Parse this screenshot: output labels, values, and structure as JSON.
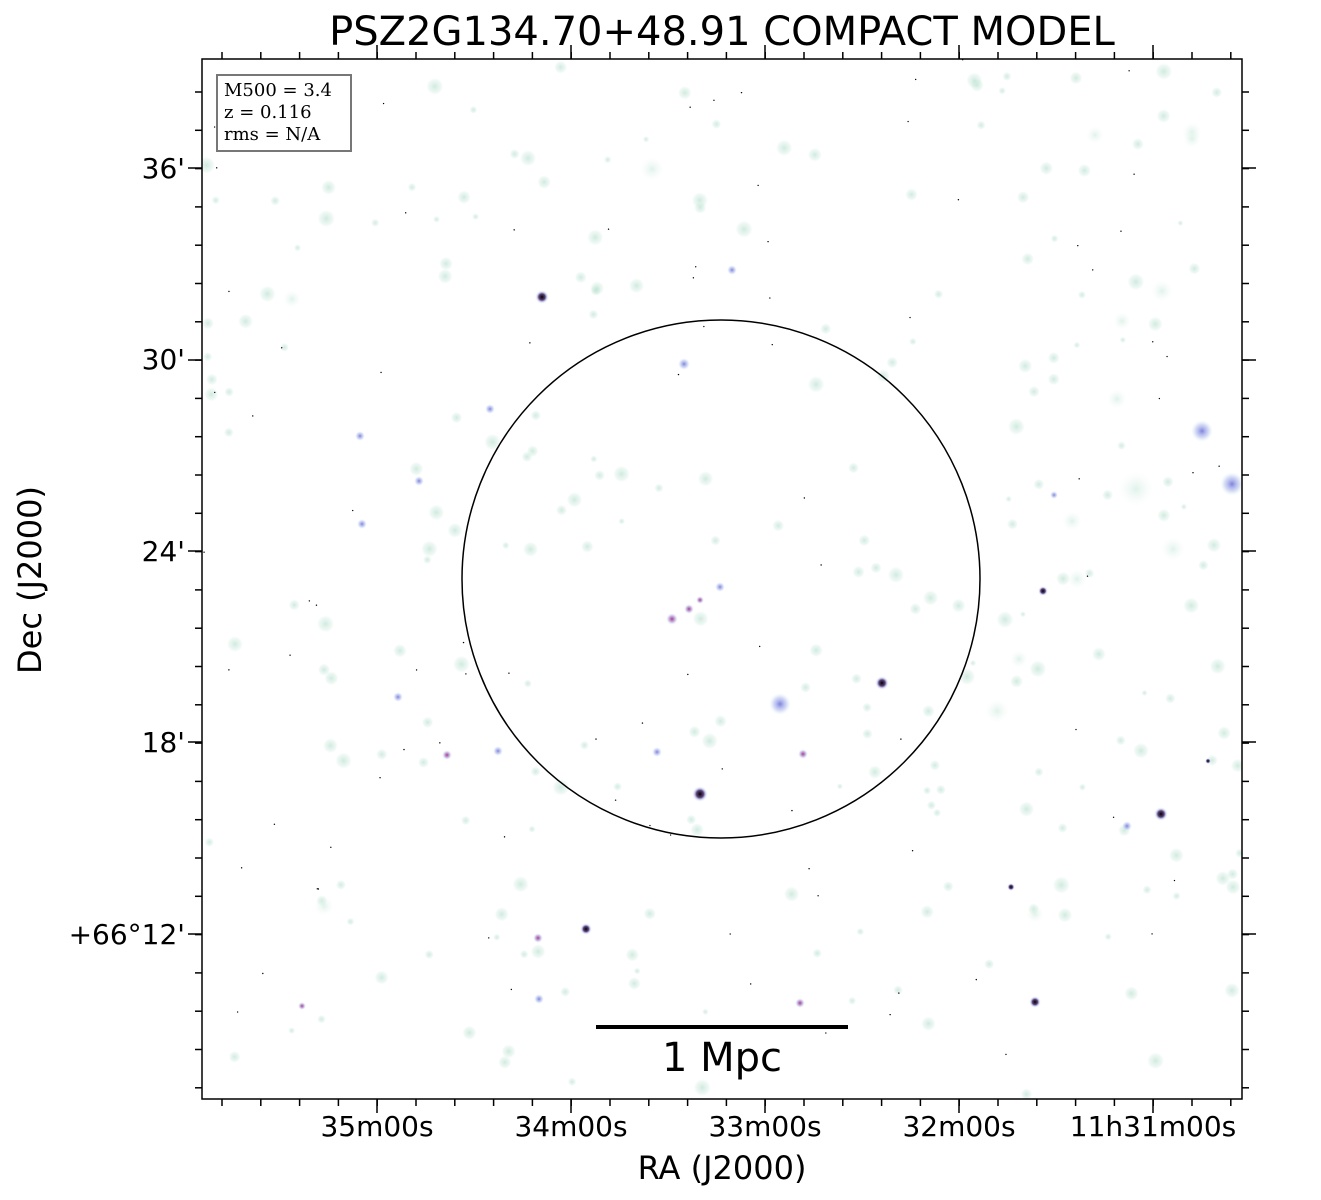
{
  "title": "PSZ2G134.70+48.91 COMPACT MODEL",
  "x_axis": {
    "label": "RA (J2000)",
    "tick_labels": [
      "35m00s",
      "34m00s",
      "33m00s",
      "32m00s",
      "11h31m00s"
    ]
  },
  "y_axis": {
    "label": "Dec (J2000)",
    "tick_labels": [
      "36'",
      "30'",
      "24'",
      "18'",
      "+66°12'"
    ]
  },
  "info_box": {
    "mass": "M500 = 3.4",
    "redshift": "z = 0.116",
    "rms": "rms = N/A"
  },
  "scale_bar": {
    "label": "1 Mpc"
  },
  "colors": {
    "background": "#ffffff",
    "faint_source": "#a9d9c6",
    "blue_source": "#7f7fe0",
    "purple_source": "#b069b7",
    "bright_core": "#000000",
    "circle": "#000000"
  },
  "image_description_icon": "radio-cluster-field-image"
}
